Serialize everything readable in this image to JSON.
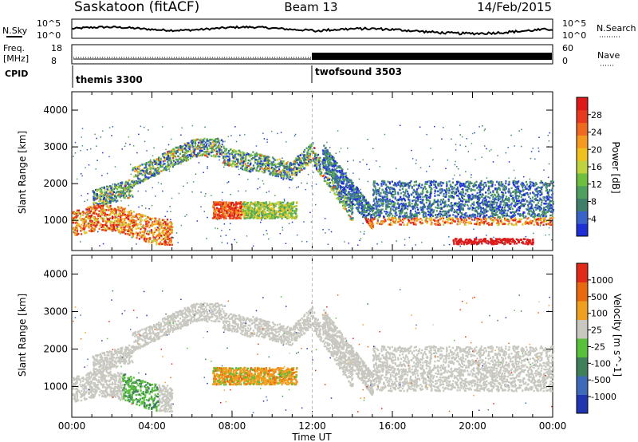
{
  "header": {
    "station": "Saskatoon (fitACF)",
    "beam": "Beam 13",
    "date": "14/Feb/2015"
  },
  "top_panels": {
    "nsky_label": "N.Sky",
    "nsky_ticks": [
      "10^5",
      "10^0"
    ],
    "nsearch_label": "N.Search",
    "nsearch_ticks": [
      "10^5",
      "10^0"
    ],
    "freq_label": "Freq.",
    "freq_unit": "[MHz]",
    "freq_ticks": [
      "18",
      "8"
    ],
    "nave_label": "Nave",
    "nave_ticks": [
      "60",
      "0"
    ],
    "cpid_label": "CPID",
    "cpid_segments": [
      {
        "name": "themis 3300",
        "start_ut": 0,
        "end_ut": 12
      },
      {
        "name": "twofsound 3503",
        "start_ut": 12,
        "end_ut": 24
      }
    ]
  },
  "chart_data": [
    {
      "type": "heatmap",
      "title": "",
      "xlabel": "Time UT",
      "ylabel": "Slant Range [km]",
      "x_ticks": [
        "00:00",
        "04:00",
        "08:00",
        "12:00",
        "16:00",
        "20:00",
        "00:00"
      ],
      "xlim_hours": [
        0,
        24
      ],
      "ylim_km": [
        180,
        4500
      ],
      "y_ticks": [
        "1000",
        "2000",
        "3000",
        "4000"
      ],
      "colorbar_label": "Power [dB]",
      "colorbar_ticks": [
        "4",
        "8",
        "12",
        "16",
        "20",
        "24",
        "28"
      ],
      "colors": [
        "#1f2fd6",
        "#3a63c8",
        "#3f7f6a",
        "#4f9f5f",
        "#6fbf3f",
        "#bfd23f",
        "#f0c020",
        "#f59a20",
        "#ef6a20",
        "#e83a20",
        "#dd1a1a"
      ]
    },
    {
      "type": "heatmap",
      "title": "",
      "xlabel": "Time UT",
      "ylabel": "Slant Range [km]",
      "x_ticks": [
        "00:00",
        "04:00",
        "08:00",
        "12:00",
        "16:00",
        "20:00",
        "00:00"
      ],
      "xlim_hours": [
        0,
        24
      ],
      "ylim_km": [
        180,
        4500
      ],
      "y_ticks": [
        "1000",
        "2000",
        "3000",
        "4000"
      ],
      "colorbar_label": "Velocity [m s^-1]",
      "colorbar_ticks": [
        "1000",
        "500",
        "100",
        "25",
        "-25",
        "-100",
        "-500",
        "-1000"
      ],
      "colors": [
        "#2035b0",
        "#3f6ab8",
        "#3f7f5a",
        "#58c03a",
        "#c8c8c0",
        "#f0a020",
        "#e86a10",
        "#e02a1a"
      ]
    }
  ]
}
